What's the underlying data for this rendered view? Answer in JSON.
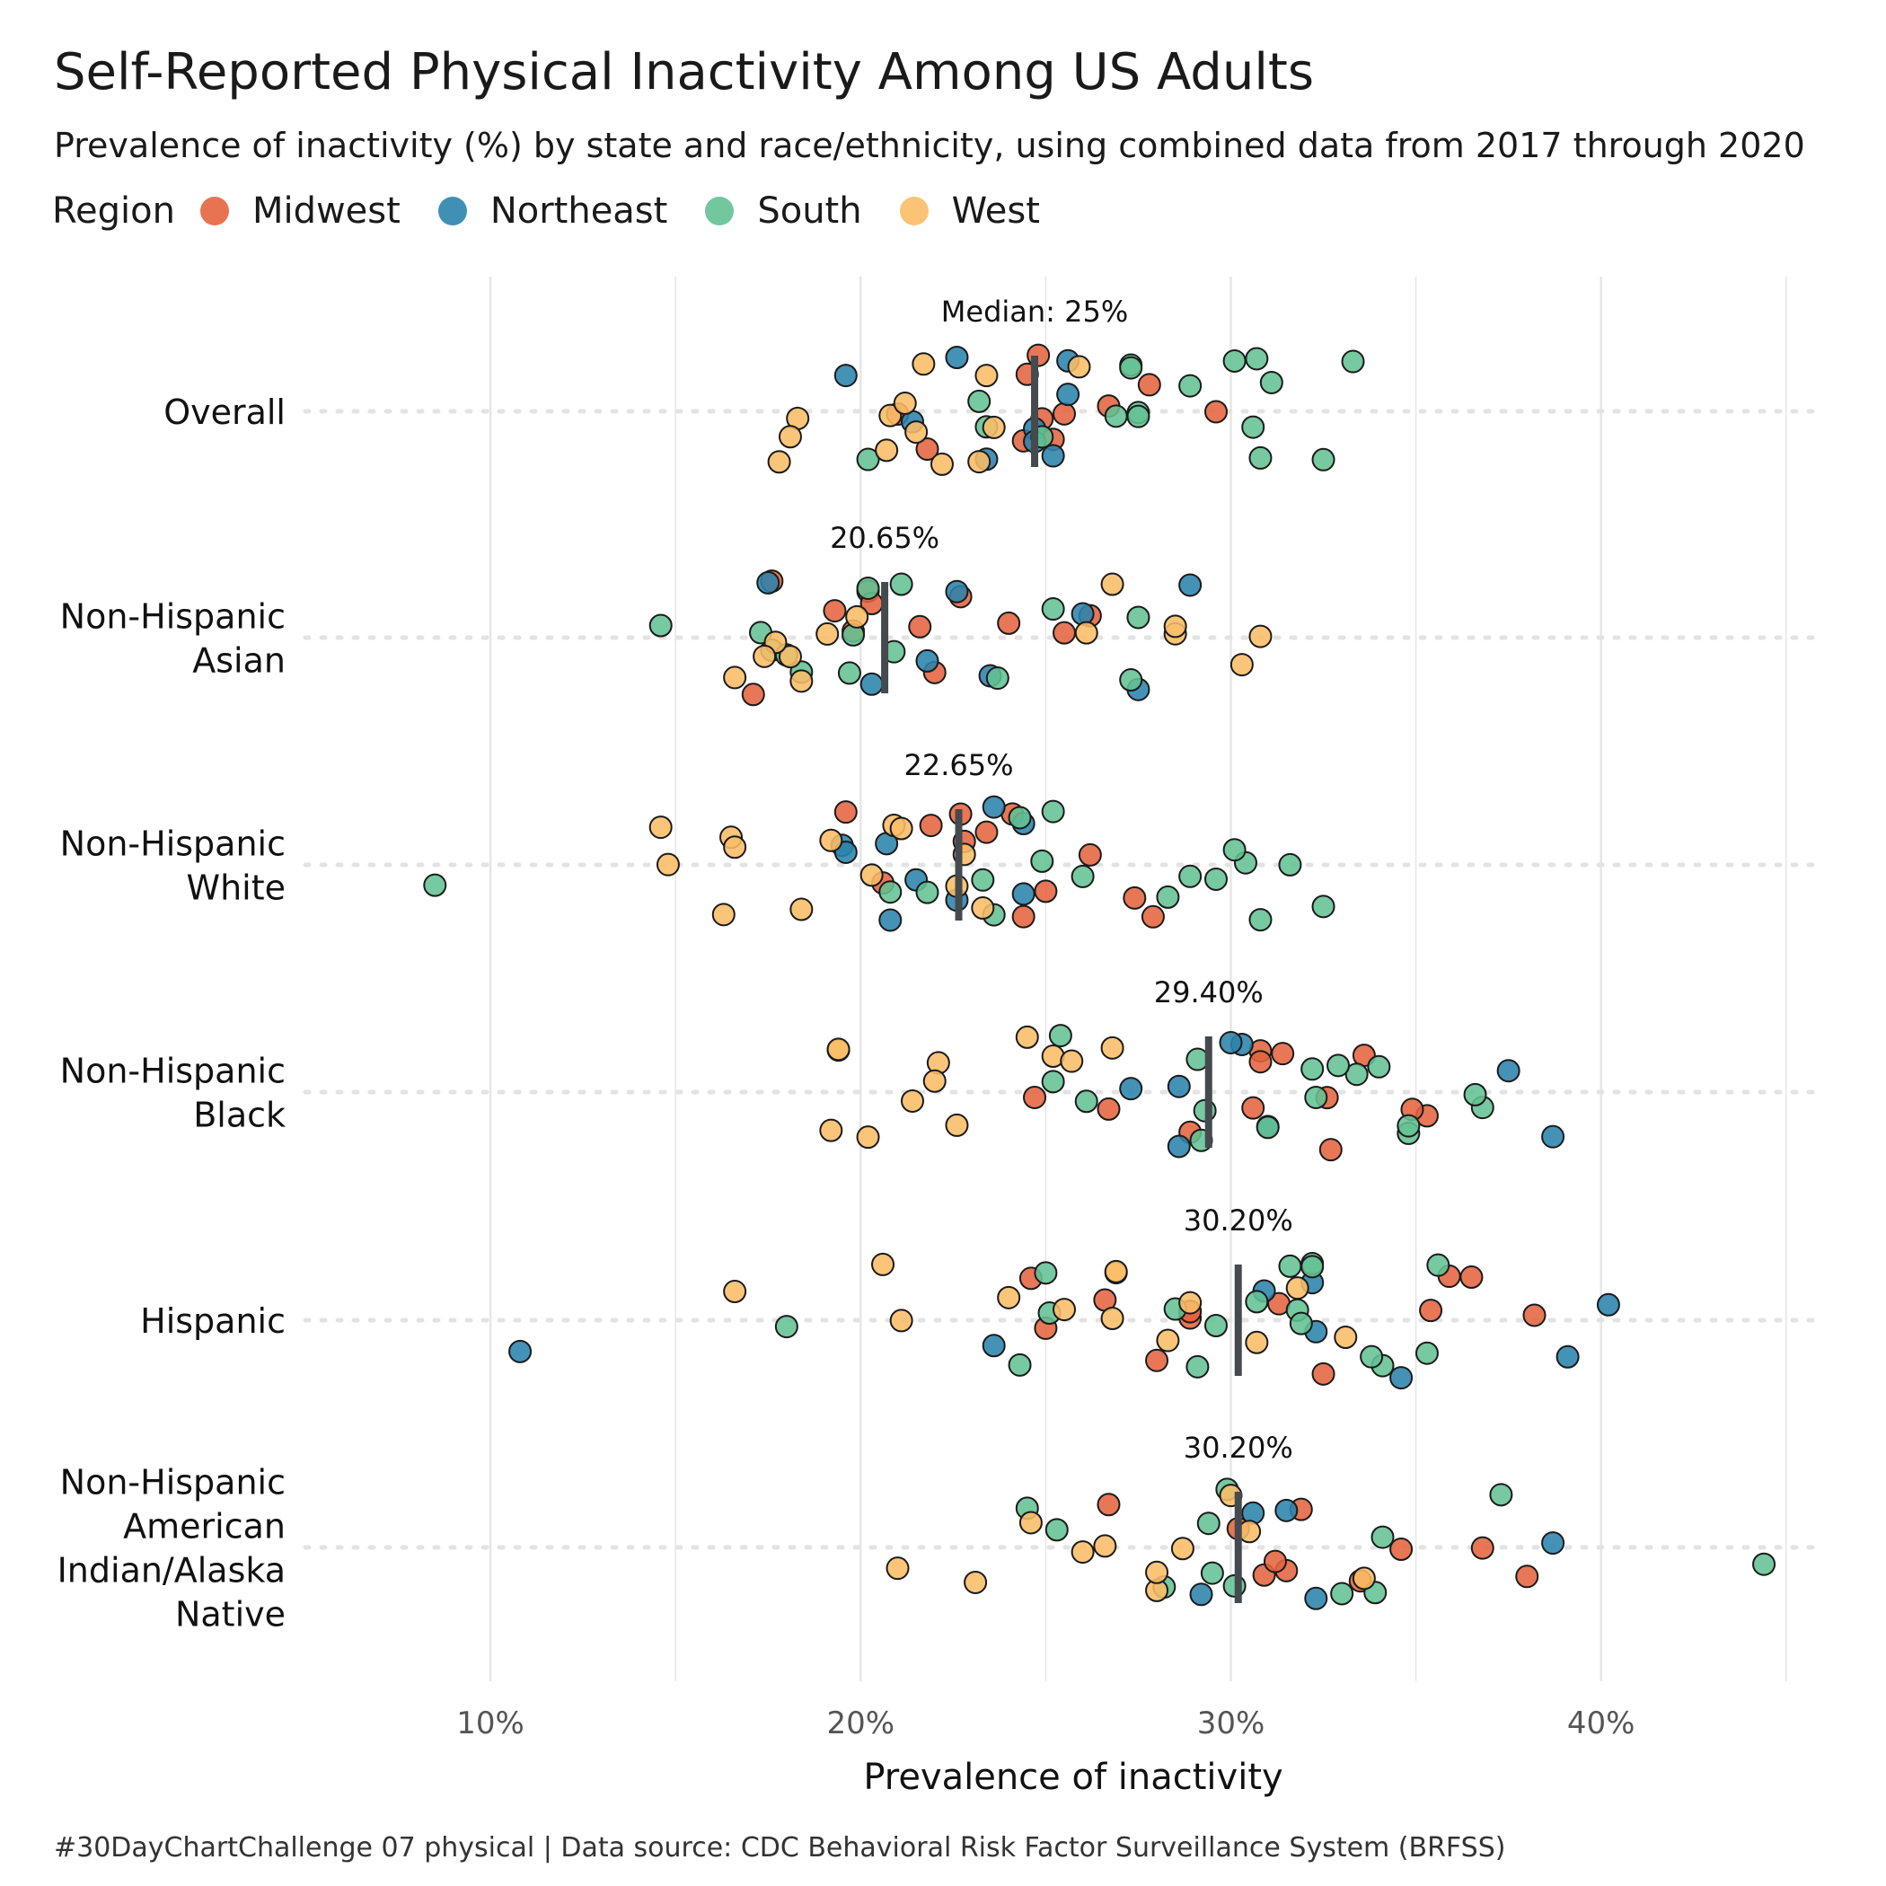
{
  "title": "Self-Reported Physical Inactivity Among US Adults",
  "subtitle": "Prevalence of inactivity (%) by state and race/ethnicity, using combined data from 2017 through 2020",
  "caption": "#30DayChartChallenge 07 physical | Data source: CDC Behavioral Risk Factor Surveillance System (BRFSS)",
  "legend": {
    "title": "Region",
    "items": [
      {
        "label": "Midwest",
        "color": "#e4643f"
      },
      {
        "label": "Northeast",
        "color": "#2b83ad"
      },
      {
        "label": "South",
        "color": "#63c193"
      },
      {
        "label": "West",
        "color": "#fbbd67"
      }
    ]
  },
  "chart_data": {
    "type": "scatter",
    "xlabel": "Prevalence of inactivity",
    "xlim": [
      5,
      46
    ],
    "x_ticks": [
      "10%",
      "20%",
      "30%",
      "40%"
    ],
    "x_tick_values": [
      10,
      20,
      30,
      40
    ],
    "grid": "vertical",
    "legend_position": "top",
    "categories": [
      "Overall",
      "Non-Hispanic Asian",
      "Non-Hispanic White",
      "Non-Hispanic Black",
      "Hispanic",
      "Non-Hispanic American Indian/Alaska Native"
    ],
    "category_labels": [
      [
        "Overall"
      ],
      [
        "Non-Hispanic",
        "Asian"
      ],
      [
        "Non-Hispanic",
        "White"
      ],
      [
        "Non-Hispanic",
        "Black"
      ],
      [
        "Hispanic"
      ],
      [
        "Non-Hispanic",
        "American",
        "Indian/Alaska",
        "Native"
      ]
    ],
    "medians": [
      24.7,
      20.65,
      22.65,
      29.4,
      30.2,
      30.2
    ],
    "median_labels": [
      "Median: 25%",
      "20.65%",
      "22.65%",
      "29.40%",
      "30.20%",
      "30.20%"
    ],
    "series": [
      {
        "name": "Midwest",
        "color": "#e4643f",
        "values": [
          [
            24.5,
            25.2,
            24.9,
            26.7,
            27.8,
            21.8,
            24.4,
            29.6,
            21.0,
            25.5,
            24.8
          ],
          [
            19.3,
            17.1,
            20.2,
            19.8,
            22.0,
            21.6,
            26.2,
            22.7,
            24.0,
            25.5,
            17.6,
            20.3
          ],
          [
            19.6,
            20.6,
            22.8,
            21.9,
            24.4,
            25.0,
            23.4,
            27.4,
            27.9,
            22.7,
            26.2,
            24.1
          ],
          [
            26.7,
            30.8,
            31.4,
            32.7,
            35.3,
            28.9,
            30.8,
            24.7,
            34.9,
            30.6,
            32.6,
            33.6
          ],
          [
            25.0,
            28.0,
            28.9,
            31.3,
            36.5,
            24.6,
            28.9,
            35.9,
            26.6,
            28.9,
            32.5,
            35.4,
            38.2
          ],
          [
            30.9,
            31.9,
            31.5,
            33.5,
            36.8,
            38.0,
            34.6,
            26.7,
            30.2,
            31.2
          ]
        ]
      },
      {
        "name": "Northeast",
        "color": "#2b83ad",
        "values": [
          [
            21.4,
            22.6,
            25.6,
            25.2,
            19.6,
            23.4,
            24.7,
            24.7,
            25.6
          ],
          [
            20.3,
            22.6,
            27.5,
            26.0,
            28.9,
            21.8,
            23.5,
            17.5
          ],
          [
            21.5,
            19.5,
            22.6,
            19.6,
            20.7,
            23.6,
            24.4,
            20.8,
            24.4
          ],
          [
            28.6,
            30.3,
            27.3,
            30.0,
            37.5,
            38.7,
            28.6,
            31.0
          ],
          [
            10.8,
            23.6,
            39.1,
            40.2,
            34.6,
            30.9,
            32.2,
            32.3
          ],
          [
            29.2,
            30.6,
            31.5,
            32.3,
            38.7
          ]
        ]
      },
      {
        "name": "South",
        "color": "#63c193",
        "values": [
          [
            23.4,
            27.5,
            20.2,
            24.9,
            27.3,
            28.9,
            30.8,
            30.6,
            32.5,
            33.3,
            27.3,
            30.1,
            30.7,
            31.1,
            26.9,
            27.5,
            23.2
          ],
          [
            17.6,
            18.4,
            20.9,
            14.6,
            25.2,
            23.7,
            27.3,
            19.8,
            20.2,
            21.1,
            27.5,
            17.3,
            18.0,
            19.7
          ],
          [
            20.8,
            23.6,
            23.3,
            26.0,
            28.3,
            30.4,
            29.6,
            24.3,
            31.6,
            32.5,
            30.1,
            25.2,
            28.9,
            30.8,
            21.8,
            24.9,
            8.5
          ],
          [
            29.2,
            31.0,
            33.4,
            32.3,
            34.8,
            36.8,
            34.0,
            29.1,
            26.1,
            36.6,
            32.9,
            25.4,
            34.8,
            32.2,
            29.3,
            25.2
          ],
          [
            31.8,
            30.7,
            32.2,
            32.2,
            35.3,
            35.6,
            29.6,
            31.6,
            31.9,
            34.1,
            18.0,
            25.0,
            33.8,
            25.1,
            24.3,
            28.5,
            29.1
          ],
          [
            29.5,
            30.1,
            33.0,
            25.3,
            24.5,
            29.9,
            34.1,
            37.3,
            28.2,
            33.9,
            29.4,
            44.4
          ]
        ]
      },
      {
        "name": "West",
        "color": "#fbbd67",
        "values": [
          [
            18.3,
            17.8,
            18.1,
            20.8,
            21.2,
            20.7,
            21.5,
            21.7,
            22.2,
            23.2,
            23.6,
            25.9,
            23.4
          ],
          [
            18.1,
            19.9,
            17.7,
            17.4,
            16.6,
            18.4,
            19.1,
            28.5,
            30.3,
            30.8,
            28.5,
            26.1,
            26.8
          ],
          [
            18.4,
            14.8,
            16.5,
            16.6,
            14.6,
            16.3,
            20.9,
            19.2,
            20.3,
            21.1,
            22.6,
            23.3,
            22.8
          ],
          [
            25.2,
            22.1,
            21.4,
            24.5,
            19.4,
            19.2,
            22.0,
            19.4,
            20.2,
            22.6,
            25.7,
            26.8
          ],
          [
            26.8,
            28.9,
            33.1,
            24.0,
            25.5,
            26.9,
            21.1,
            20.6,
            28.3,
            30.7,
            26.9,
            31.8,
            16.6
          ],
          [
            26.6,
            28.0,
            28.7,
            30.5,
            33.6,
            21.0,
            23.1,
            26.0,
            24.6,
            28.0,
            30.0
          ]
        ]
      }
    ]
  }
}
